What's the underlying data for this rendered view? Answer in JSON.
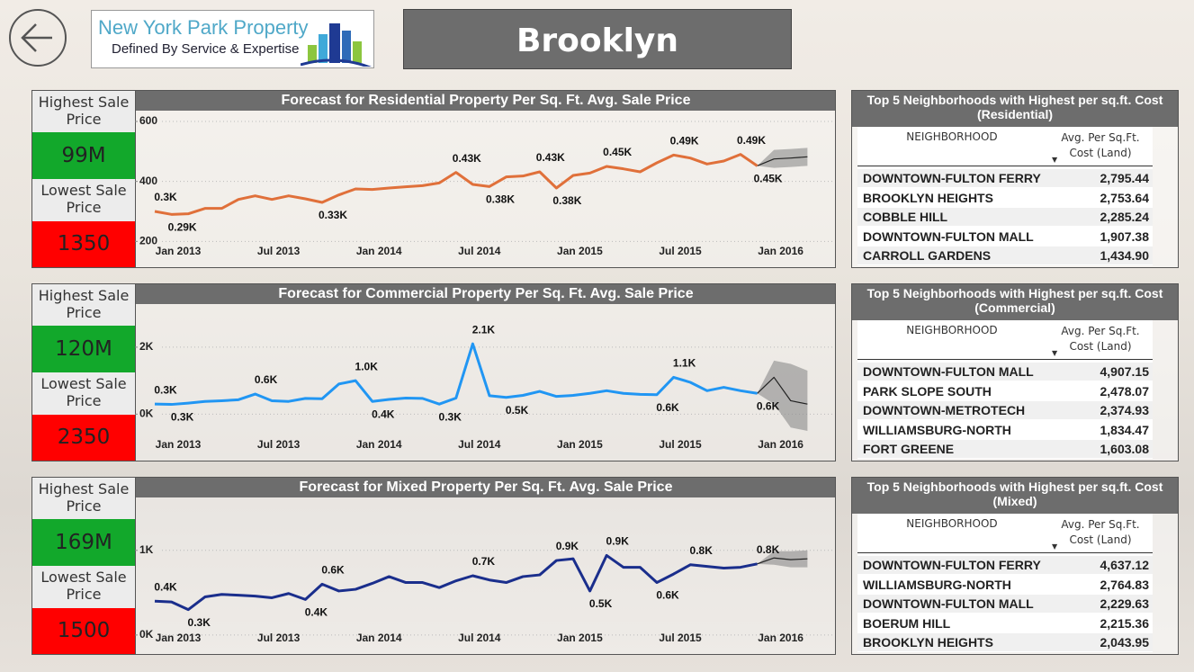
{
  "header": {
    "title": "Brooklyn",
    "logo": {
      "name": "New York Park Property",
      "tagline": "Defined By Service & Expertise"
    }
  },
  "chart_data": [
    {
      "type": "line",
      "title": "Forecast for Residential Property Per Sq. Ft. Avg. Sale Price",
      "categories": [
        "Jan 2013",
        null,
        null,
        null,
        null,
        null,
        "Jul 2013",
        null,
        null,
        null,
        null,
        null,
        "Jan 2014",
        null,
        null,
        null,
        null,
        null,
        "Jul 2014",
        null,
        null,
        null,
        null,
        null,
        "Jan 2015",
        null,
        null,
        null,
        null,
        null,
        "Jul 2015",
        null,
        null,
        null,
        null,
        null,
        "Jan 2016",
        null,
        null,
        null
      ],
      "values": [
        300,
        290,
        292,
        310,
        310,
        340,
        352,
        340,
        352,
        342,
        330,
        355,
        375,
        373,
        378,
        382,
        386,
        395,
        430,
        390,
        383,
        415,
        418,
        432,
        378,
        420,
        428,
        450,
        442,
        432,
        462,
        488,
        478,
        458,
        468,
        490,
        452,
        null,
        null,
        null
      ],
      "value_labels": [
        "0.3K",
        "0.29K",
        null,
        null,
        null,
        null,
        null,
        null,
        null,
        null,
        "0.33K",
        null,
        null,
        null,
        null,
        null,
        null,
        null,
        "0.43K",
        null,
        "0.38K",
        null,
        null,
        "0.43K",
        "0.38K",
        null,
        null,
        "0.45K",
        null,
        null,
        null,
        "0.49K",
        null,
        null,
        null,
        "0.49K",
        "0.45K",
        null,
        null,
        null
      ],
      "color": "#e0703a",
      "forecast": [
        null,
        null,
        null,
        null,
        null,
        null,
        null,
        null,
        null,
        null,
        null,
        null,
        null,
        null,
        null,
        null,
        null,
        null,
        null,
        null,
        null,
        null,
        null,
        null,
        null,
        null,
        null,
        null,
        null,
        null,
        null,
        null,
        null,
        null,
        null,
        null,
        452,
        475,
        478,
        482
      ],
      "forecast_upper": [
        null,
        null,
        null,
        null,
        null,
        null,
        null,
        null,
        null,
        null,
        null,
        null,
        null,
        null,
        null,
        null,
        null,
        null,
        null,
        null,
        null,
        null,
        null,
        null,
        null,
        null,
        null,
        null,
        null,
        null,
        null,
        null,
        null,
        null,
        null,
        null,
        452,
        505,
        508,
        512
      ],
      "forecast_lower": [
        null,
        null,
        null,
        null,
        null,
        null,
        null,
        null,
        null,
        null,
        null,
        null,
        null,
        null,
        null,
        null,
        null,
        null,
        null,
        null,
        null,
        null,
        null,
        null,
        null,
        null,
        null,
        null,
        null,
        null,
        null,
        null,
        null,
        null,
        null,
        null,
        452,
        445,
        448,
        452
      ],
      "forecast_color": "#222222",
      "band_color": "#8a8a8a",
      "ylim": [
        135,
        615
      ],
      "yticks": [
        200,
        400,
        600
      ]
    },
    {
      "type": "line",
      "title": "Forecast for Commercial Property Per Sq. Ft. Avg. Sale Price",
      "categories": [
        "Jan 2013",
        null,
        null,
        null,
        null,
        null,
        "Jul 2013",
        null,
        null,
        null,
        null,
        null,
        "Jan 2014",
        null,
        null,
        null,
        null,
        null,
        "Jul 2014",
        null,
        null,
        null,
        null,
        null,
        "Jan 2015",
        null,
        null,
        null,
        null,
        null,
        "Jul 2015",
        null,
        null,
        null,
        null,
        null,
        "Jan 2016",
        null,
        null,
        null
      ],
      "values": [
        300,
        290,
        330,
        380,
        400,
        430,
        600,
        400,
        380,
        470,
        460,
        900,
        1000,
        380,
        440,
        480,
        470,
        300,
        480,
        2100,
        550,
        500,
        560,
        680,
        530,
        560,
        620,
        700,
        620,
        590,
        580,
        1100,
        950,
        700,
        800,
        700,
        620,
        null,
        null,
        null
      ],
      "value_labels": [
        "0.3K",
        "0.3K",
        null,
        null,
        null,
        null,
        "0.6K",
        null,
        null,
        null,
        null,
        null,
        "1.0K",
        "0.4K",
        null,
        null,
        null,
        "0.3K",
        null,
        "2.1K",
        null,
        "0.5K",
        null,
        null,
        null,
        null,
        null,
        null,
        null,
        null,
        "0.6K",
        "1.1K",
        null,
        null,
        null,
        null,
        "0.6K",
        null,
        null,
        null
      ],
      "color": "#2196f3",
      "forecast": [
        null,
        null,
        null,
        null,
        null,
        null,
        null,
        null,
        null,
        null,
        null,
        null,
        null,
        null,
        null,
        null,
        null,
        null,
        null,
        null,
        null,
        null,
        null,
        null,
        null,
        null,
        null,
        null,
        null,
        null,
        null,
        null,
        null,
        null,
        null,
        null,
        620,
        1100,
        400,
        300
      ],
      "forecast_upper": [
        null,
        null,
        null,
        null,
        null,
        null,
        null,
        null,
        null,
        null,
        null,
        null,
        null,
        null,
        null,
        null,
        null,
        null,
        null,
        null,
        null,
        null,
        null,
        null,
        null,
        null,
        null,
        null,
        null,
        null,
        null,
        null,
        null,
        null,
        null,
        null,
        620,
        1600,
        1500,
        1300
      ],
      "forecast_lower": [
        null,
        null,
        null,
        null,
        null,
        null,
        null,
        null,
        null,
        null,
        null,
        null,
        null,
        null,
        null,
        null,
        null,
        null,
        null,
        null,
        null,
        null,
        null,
        null,
        null,
        null,
        null,
        null,
        null,
        null,
        null,
        null,
        null,
        null,
        null,
        null,
        620,
        300,
        -400,
        -500
      ],
      "forecast_color": "#222222",
      "band_color": "#8a8a8a",
      "ylim": [
        -1200,
        3100
      ],
      "yticks": [
        {
          "value": 0,
          "label": "0K"
        },
        {
          "value": 2000,
          "label": "2K"
        }
      ]
    },
    {
      "type": "line",
      "title": "Forecast for Mixed Property Per Sq. Ft. Avg. Sale Price",
      "categories": [
        "Jan 2013",
        null,
        null,
        null,
        null,
        null,
        "Jul 2013",
        null,
        null,
        null,
        null,
        null,
        "Jan 2014",
        null,
        null,
        null,
        null,
        null,
        "Jul 2014",
        null,
        null,
        null,
        null,
        null,
        "Jan 2015",
        null,
        null,
        null,
        null,
        null,
        "Jul 2015",
        null,
        null,
        null,
        null,
        null,
        "Jan 2016",
        null,
        null,
        null
      ],
      "values": [
        400,
        390,
        300,
        450,
        480,
        470,
        460,
        440,
        490,
        420,
        600,
        520,
        540,
        610,
        690,
        620,
        620,
        560,
        640,
        700,
        650,
        620,
        690,
        710,
        880,
        900,
        520,
        940,
        800,
        800,
        620,
        720,
        830,
        810,
        790,
        800,
        840,
        null,
        null,
        null
      ],
      "value_labels": [
        "0.4K",
        null,
        "0.3K",
        null,
        null,
        null,
        null,
        null,
        null,
        "0.4K",
        "0.6K",
        null,
        null,
        null,
        null,
        null,
        null,
        null,
        null,
        "0.7K",
        null,
        null,
        null,
        null,
        "0.9K",
        null,
        "0.5K",
        "0.9K",
        null,
        null,
        "0.6K",
        null,
        "0.8K",
        null,
        null,
        null,
        "0.8K",
        null,
        null,
        null
      ],
      "color": "#1a2e8c",
      "forecast": [
        null,
        null,
        null,
        null,
        null,
        null,
        null,
        null,
        null,
        null,
        null,
        null,
        null,
        null,
        null,
        null,
        null,
        null,
        null,
        null,
        null,
        null,
        null,
        null,
        null,
        null,
        null,
        null,
        null,
        null,
        null,
        null,
        null,
        null,
        null,
        null,
        840,
        910,
        890,
        900
      ],
      "forecast_upper": [
        null,
        null,
        null,
        null,
        null,
        null,
        null,
        null,
        null,
        null,
        null,
        null,
        null,
        null,
        null,
        null,
        null,
        null,
        null,
        null,
        null,
        null,
        null,
        null,
        null,
        null,
        null,
        null,
        null,
        null,
        null,
        null,
        null,
        null,
        null,
        null,
        840,
        990,
        990,
        1000
      ],
      "forecast_lower": [
        null,
        null,
        null,
        null,
        null,
        null,
        null,
        null,
        null,
        null,
        null,
        null,
        null,
        null,
        null,
        null,
        null,
        null,
        null,
        null,
        null,
        null,
        null,
        null,
        null,
        null,
        null,
        null,
        null,
        null,
        null,
        null,
        null,
        null,
        null,
        null,
        840,
        830,
        800,
        800
      ],
      "forecast_color": "#222222",
      "band_color": "#8a8a8a",
      "ylim": [
        -150,
        1550
      ],
      "yticks": [
        {
          "value": 0,
          "label": "0K"
        },
        {
          "value": 1000,
          "label": "1K"
        }
      ]
    }
  ],
  "kpis": [
    {
      "highest_label": "Highest Sale Price",
      "highest": "99M",
      "lowest_label": "Lowest Sale Price",
      "lowest": 1350
    },
    {
      "highest_label": "Highest Sale Price",
      "highest": "120M",
      "lowest_label": "Lowest Sale Price",
      "lowest": 2350
    },
    {
      "highest_label": "Highest Sale Price",
      "highest": "169M",
      "lowest_label": "Lowest Sale Price",
      "lowest": 1500
    }
  ],
  "tables": [
    {
      "title": "Top 5 Neighborhoods with Highest per sq.ft. Cost (Residential)",
      "columns": [
        "NEIGHBORHOOD",
        "Avg. Per Sq.Ft. Cost (Land)"
      ],
      "rows": [
        [
          "DOWNTOWN-FULTON FERRY",
          "2,795.44"
        ],
        [
          "BROOKLYN HEIGHTS",
          "2,753.64"
        ],
        [
          "COBBLE HILL",
          "2,285.24"
        ],
        [
          "DOWNTOWN-FULTON MALL",
          "1,907.38"
        ],
        [
          "CARROLL GARDENS",
          "1,434.90"
        ]
      ]
    },
    {
      "title": "Top 5 Neighborhoods with Highest per sq.ft. Cost (Commercial)",
      "columns": [
        "NEIGHBORHOOD",
        "Avg. Per Sq.Ft. Cost (Land)"
      ],
      "rows": [
        [
          "DOWNTOWN-FULTON MALL",
          "4,907.15"
        ],
        [
          "PARK SLOPE SOUTH",
          "2,478.07"
        ],
        [
          "DOWNTOWN-METROTECH",
          "2,374.93"
        ],
        [
          "WILLIAMSBURG-NORTH",
          "1,834.47"
        ],
        [
          "FORT GREENE",
          "1,603.08"
        ]
      ]
    },
    {
      "title": "Top 5 Neighborhoods with Highest per sq.ft. Cost (Mixed)",
      "columns": [
        "NEIGHBORHOOD",
        "Avg. Per Sq.Ft. Cost (Land)"
      ],
      "rows": [
        [
          "DOWNTOWN-FULTON FERRY",
          "4,637.12"
        ],
        [
          "WILLIAMSBURG-NORTH",
          "2,764.83"
        ],
        [
          "DOWNTOWN-FULTON MALL",
          "2,229.63"
        ],
        [
          "BOERUM HILL",
          "2,215.36"
        ],
        [
          "BROOKLYN HEIGHTS",
          "2,043.95"
        ]
      ]
    }
  ]
}
